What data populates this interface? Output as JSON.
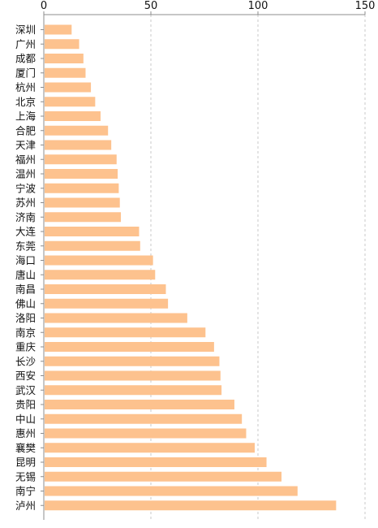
{
  "colors": {
    "bar": "#FDC28E",
    "grid": "#c8c8c8",
    "axis": "#8c8c8c",
    "text": "#111111"
  },
  "chart_data": {
    "type": "bar",
    "orientation": "horizontal",
    "x_axis_position": "top",
    "xlim": [
      0,
      150
    ],
    "x_ticks": [
      0,
      50,
      100,
      150
    ],
    "grid": "vertical dashed",
    "categories": [
      "深圳",
      "广州",
      "成都",
      "厦门",
      "杭州",
      "北京",
      "上海",
      "合肥",
      "天津",
      "福州",
      "温州",
      "宁波",
      "苏州",
      "济南",
      "大连",
      "东莞",
      "海口",
      "唐山",
      "南昌",
      "佛山",
      "洛阳",
      "南京",
      "重庆",
      "长沙",
      "西安",
      "武汉",
      "贵阳",
      "中山",
      "惠州",
      "襄樊",
      "昆明",
      "无锡",
      "南宁",
      "泸州"
    ],
    "values": [
      13,
      16.5,
      18.5,
      19.5,
      22,
      24,
      26.5,
      30,
      31.5,
      34,
      34.5,
      35,
      35.5,
      36,
      44.5,
      45,
      51,
      52,
      57,
      58,
      67,
      75.5,
      79.5,
      82,
      82.5,
      83,
      89,
      92.5,
      94.5,
      98.5,
      104,
      111,
      118.5,
      136.5
    ]
  }
}
